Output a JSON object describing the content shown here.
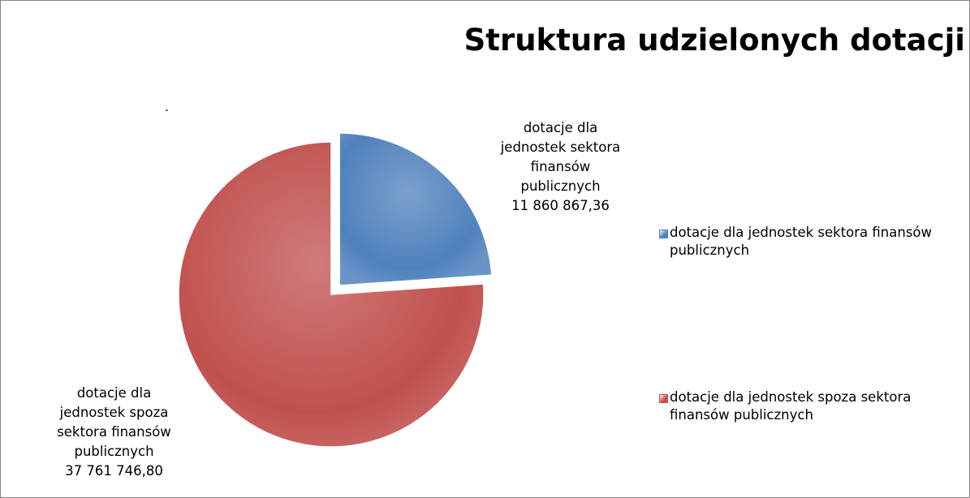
{
  "chart_data": {
    "type": "pie",
    "title": "Struktura udzielonych dotacji",
    "annotation": ".",
    "categories": [
      "dotacje dla jednostek sektora finansów publicznych",
      "dotacje dla jednostek spoza sektora finansów publicznych"
    ],
    "values": [
      11860867.36,
      37761746.8
    ],
    "value_labels": [
      "11 860 867,36",
      "37 761 746,80"
    ],
    "colors": [
      "#4f81bd",
      "#c0504d"
    ],
    "legend": "right"
  }
}
